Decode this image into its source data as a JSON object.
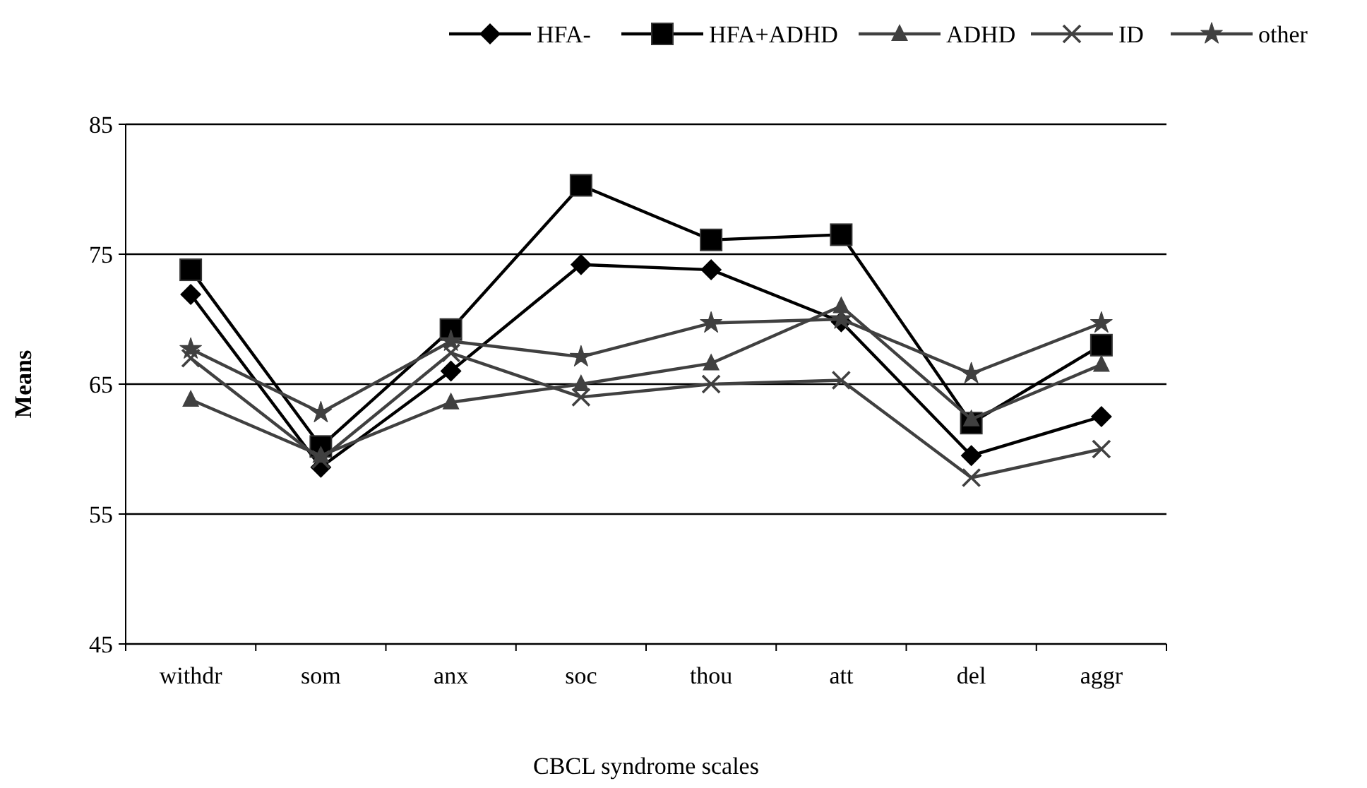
{
  "chart_data": {
    "type": "line",
    "xlabel": "CBCL syndrome scales",
    "ylabel": "Means",
    "categories": [
      "withdr",
      "som",
      "anx",
      "soc",
      "thou",
      "att",
      "del",
      "aggr"
    ],
    "ylim": [
      45,
      85
    ],
    "yticks": [
      45,
      55,
      65,
      75,
      85
    ],
    "grid": "y",
    "legend": "top right",
    "series": [
      {
        "name": "HFA-",
        "color": "#000000",
        "marker": "diamond",
        "values": [
          71.9,
          58.6,
          66,
          74.2,
          73.8,
          69.8,
          59.5,
          62.5
        ]
      },
      {
        "name": "HFA+ADHD",
        "color": "#000000",
        "marker": "square",
        "values": [
          73.8,
          60.2,
          69.2,
          80.3,
          76.1,
          76.5,
          62,
          68
        ]
      },
      {
        "name": "ADHD",
        "color": "#404040",
        "marker": "triangle",
        "values": [
          63.8,
          59.5,
          63.6,
          65,
          66.6,
          71,
          62.3,
          66.5
        ]
      },
      {
        "name": "ID",
        "color": "#404040",
        "marker": "cross",
        "values": [
          67,
          59.2,
          67.4,
          64,
          65,
          65.3,
          57.8,
          60
        ]
      },
      {
        "name": "other",
        "color": "#404040",
        "marker": "star",
        "values": [
          67.7,
          62.8,
          68.3,
          67.1,
          69.7,
          70,
          65.8,
          69.7
        ]
      }
    ]
  }
}
